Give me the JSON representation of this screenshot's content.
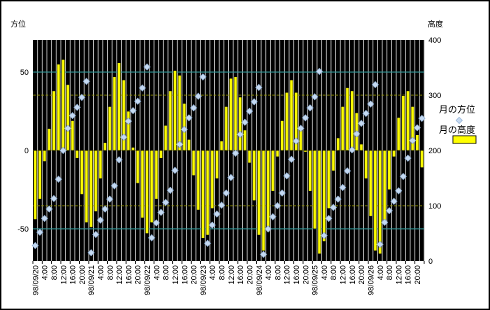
{
  "chart_data": {
    "type": "combo-bar-scatter",
    "left_axis": {
      "title": "方位",
      "tick_labels": [
        "50",
        "0",
        "-50"
      ],
      "tick_values": [
        50,
        0,
        -50
      ],
      "range": [
        -70.5,
        70.5
      ]
    },
    "right_axis": {
      "title": "高度",
      "tick_labels": [
        "400",
        "300",
        "200",
        "100",
        "0"
      ],
      "tick_values": [
        400,
        300,
        200,
        100,
        0
      ],
      "range": [
        0,
        400
      ]
    },
    "x_axis": {
      "categories_count": 84,
      "category_duration_hours": 2,
      "label_every_n_categories": 2,
      "labels": [
        "98/09/20",
        "4:00",
        "8:00",
        "12:00",
        "16:00",
        "20:00",
        "98/09/21",
        "4:00",
        "8:00",
        "12:00",
        "16:00",
        "20:00",
        "98/09/22",
        "4:00",
        "8:00",
        "12:00",
        "16:00",
        "20:00",
        "98/09/23",
        "4:00",
        "8:00",
        "12:00",
        "16:00",
        "20:00",
        "98/09/24",
        "4:00",
        "8:00",
        "12:00",
        "16:00",
        "20:00",
        "98/09/25",
        "4:00",
        "8:00",
        "12:00",
        "16:00",
        "20:00",
        "98/09/26",
        "4:00",
        "8:00",
        "12:00",
        "16:00",
        "20:00"
      ]
    },
    "legend": {
      "position": "right",
      "items": [
        {
          "label": "月の方位",
          "marker": "diamond"
        },
        {
          "label": "月の高度",
          "marker": "bar"
        }
      ]
    },
    "series": [
      {
        "name": "月の高度",
        "type": "bar",
        "axis": "left",
        "values": [
          -44,
          -31,
          -7,
          14,
          38,
          55,
          58,
          42,
          19,
          -5,
          -28,
          -46,
          -49,
          -39,
          -18,
          5,
          28,
          47,
          56,
          45,
          25,
          2,
          -21,
          -43,
          -53,
          -46,
          -31,
          -5,
          16,
          38,
          51,
          48,
          30,
          7,
          -16,
          -38,
          -56,
          -54,
          -37,
          -18,
          6,
          28,
          46,
          47,
          34,
          13,
          -8,
          -32,
          -54,
          -64,
          -52,
          -26,
          -4,
          19,
          37,
          45,
          37,
          15,
          -1,
          -26,
          -50,
          -66,
          -58,
          -37,
          -13,
          8,
          28,
          40,
          38,
          24,
          4,
          -18,
          -42,
          -64,
          -66,
          -46,
          -25,
          -4,
          21,
          35,
          38,
          28,
          10,
          -11
        ]
      },
      {
        "name": "月の方位",
        "type": "scatter",
        "marker": "diamond",
        "axis": "right",
        "values": [
          28,
          52,
          77,
          94,
          113,
          148,
          200,
          240,
          263,
          278,
          296,
          325,
          15,
          48,
          74,
          94,
          112,
          136,
          183,
          224,
          253,
          272,
          289,
          313,
          351,
          42,
          69,
          88,
          106,
          128,
          164,
          211,
          238,
          259,
          277,
          298,
          333,
          32,
          65,
          85,
          101,
          123,
          151,
          195,
          229,
          251,
          271,
          288,
          314,
          12,
          58,
          80,
          100,
          123,
          154,
          184,
          217,
          240,
          259,
          277,
          297,
          343,
          46,
          77,
          97,
          112,
          133,
          163,
          201,
          230,
          249,
          267,
          284,
          319,
          30,
          70,
          91,
          108,
          127,
          153,
          186,
          218,
          241,
          258
        ]
      }
    ],
    "grid": {
      "vertical_gridlines": true,
      "horizontal_left_values": [
        50,
        -50
      ],
      "horizontal_right_values": [
        300,
        200,
        100
      ]
    }
  },
  "colors": {
    "background": "#FFFFFF",
    "outer_border": "#000000",
    "plot_background": "#000000",
    "vertical_grid": "#C0C0C0",
    "left_grid_teal": "#339999",
    "right_grid_olive": "#999900",
    "bar_fill": "#FFFF00",
    "bar_border": "#000000",
    "marker_fill": "#C5D9F1",
    "marker_border": "#8FAFD4",
    "text": "#000000"
  }
}
